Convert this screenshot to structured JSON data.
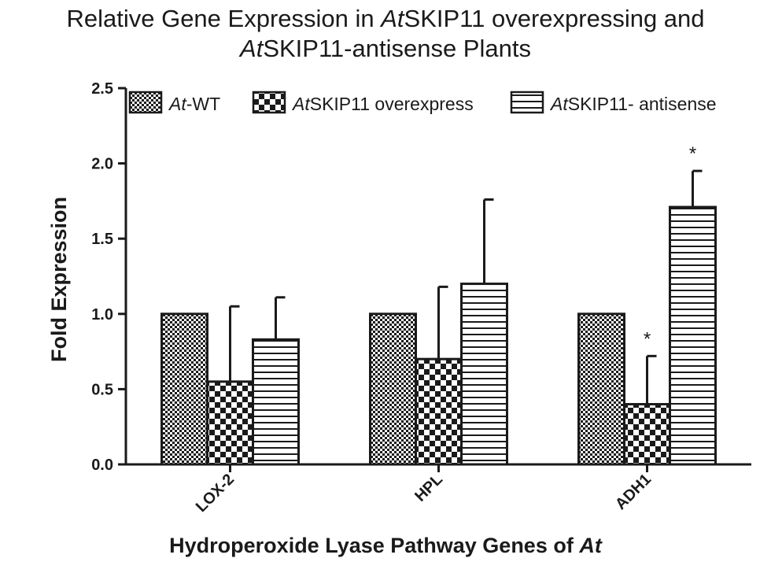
{
  "chart_data": {
    "type": "bar",
    "title_line1": [
      "Relative Gene Expression in ",
      "At",
      "SKIP11 overexpressing and"
    ],
    "title_line2": [
      "At",
      "SKIP11-antisense Plants"
    ],
    "xlabel": [
      "Hydroperoxide Lyase Pathway Genes of ",
      "At"
    ],
    "ylabel": "Fold Expression",
    "ylim": [
      0,
      2.5
    ],
    "yticks": [
      "0.0",
      "0.5",
      "1.0",
      "1.5",
      "2.0",
      "2.5"
    ],
    "categories": [
      "LOX-2",
      "HPL",
      "ADH1"
    ],
    "series": [
      {
        "name_italic": "At",
        "name_rest": "-WT",
        "pattern": "fine-check",
        "values": [
          1.0,
          1.0,
          1.0
        ],
        "errors": [
          null,
          null,
          null
        ],
        "significance": [
          "",
          "",
          ""
        ]
      },
      {
        "name_italic": "At",
        "name_rest": "SKIP11 overexpress",
        "pattern": "coarse-check",
        "values": [
          0.55,
          0.7,
          0.4
        ],
        "errors": [
          0.5,
          0.48,
          0.32
        ],
        "significance": [
          "",
          "",
          "*"
        ]
      },
      {
        "name_italic": "At",
        "name_rest": "SKIP11- antisense",
        "pattern": "horizontal-stripes",
        "values": [
          0.83,
          1.2,
          1.71
        ],
        "errors": [
          0.28,
          0.56,
          0.24
        ],
        "significance": [
          "",
          "",
          "*"
        ]
      }
    ],
    "legend_position": "top",
    "grid": false,
    "colors": {
      "ink": "#1a1a1a",
      "background": "#ffffff"
    }
  }
}
